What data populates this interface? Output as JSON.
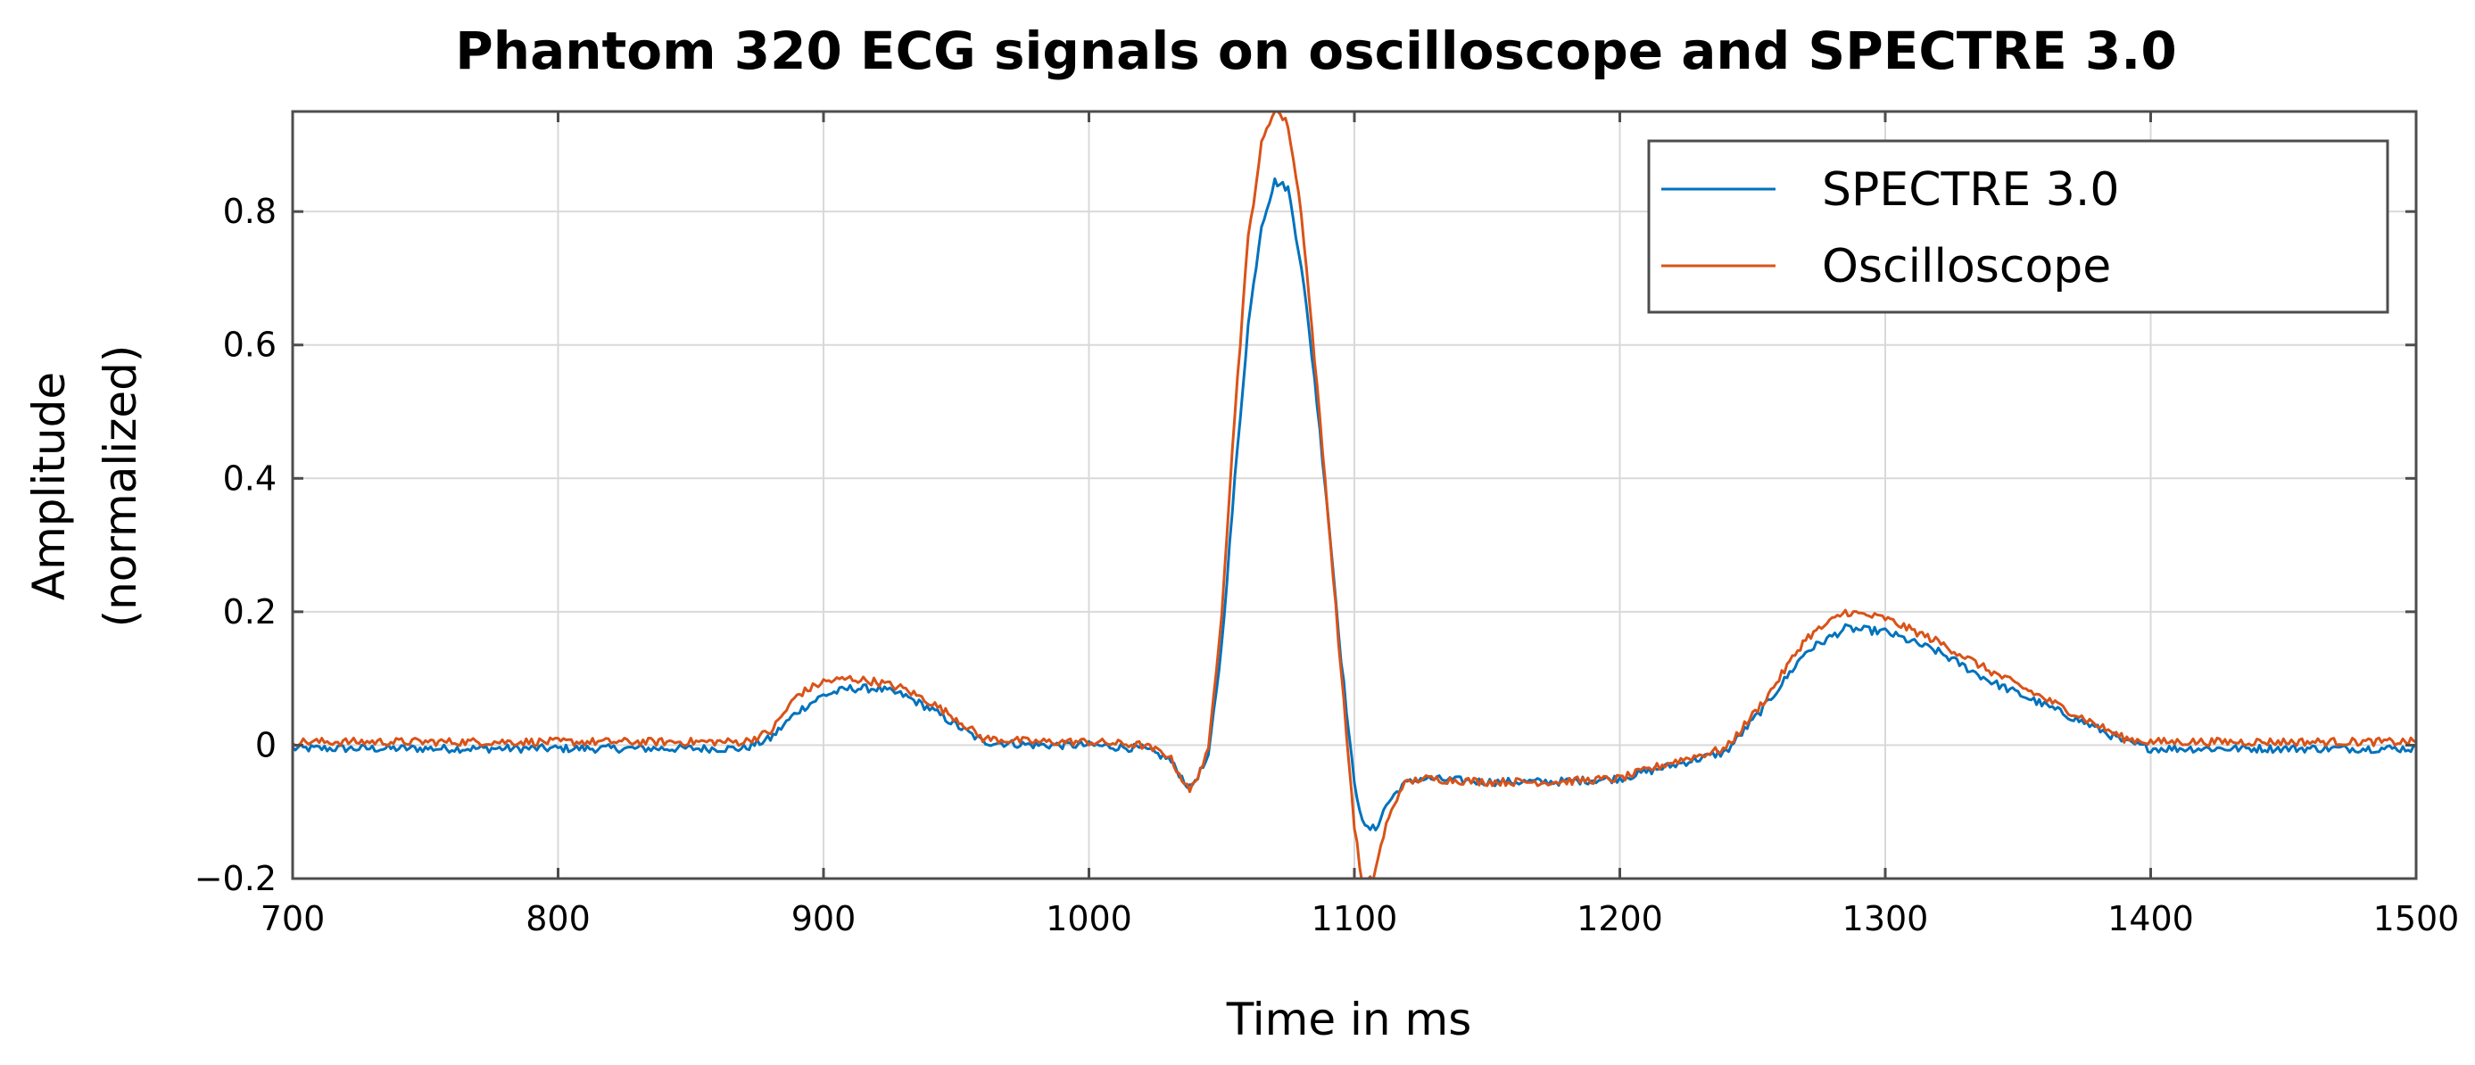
{
  "chart_data": {
    "type": "line",
    "title": "Phantom 320 ECG signals on oscilloscope and SPECTRE 3.0",
    "xlabel": "Time in ms",
    "ylabel_line1": "Amplitude",
    "ylabel_line2": "(normalized)",
    "xlim": [
      700,
      1500
    ],
    "ylim": [
      -0.2,
      0.95
    ],
    "xticks": [
      700,
      800,
      900,
      1000,
      1100,
      1200,
      1300,
      1400,
      1500
    ],
    "xtick_labels": [
      "700",
      "800",
      "900",
      "1000",
      "1100",
      "1200",
      "1300",
      "1400",
      "1500"
    ],
    "yticks": [
      -0.2,
      0,
      0.2,
      0.4,
      0.6,
      0.8
    ],
    "ytick_labels": [
      "−0.2",
      "0",
      "0.2",
      "0.4",
      "0.6",
      "0.8"
    ],
    "grid": true,
    "legend_position": "top-right",
    "series": [
      {
        "name": "SPECTRE 3.0",
        "color": "#0072BD",
        "x": [
          700,
          800,
          870,
          880,
          890,
          900,
          910,
          920,
          930,
          940,
          950,
          960,
          980,
          1000,
          1020,
          1030,
          1038,
          1045,
          1050,
          1055,
          1060,
          1065,
          1070,
          1075,
          1080,
          1085,
          1090,
          1095,
          1100,
          1104,
          1108,
          1112,
          1118,
          1125,
          1150,
          1175,
          1200,
          1220,
          1240,
          1255,
          1270,
          1285,
          1300,
          1320,
          1340,
          1360,
          1380,
          1390,
          1400,
          1450,
          1500
        ],
        "y": [
          -0.005,
          -0.005,
          -0.005,
          0.01,
          0.05,
          0.075,
          0.085,
          0.085,
          0.075,
          0.055,
          0.03,
          0.005,
          0.0,
          0.0,
          -0.005,
          -0.02,
          -0.065,
          -0.02,
          0.15,
          0.4,
          0.63,
          0.78,
          0.845,
          0.835,
          0.72,
          0.55,
          0.35,
          0.13,
          -0.06,
          -0.125,
          -0.125,
          -0.09,
          -0.06,
          -0.05,
          -0.055,
          -0.055,
          -0.05,
          -0.03,
          -0.01,
          0.06,
          0.14,
          0.175,
          0.17,
          0.14,
          0.095,
          0.06,
          0.025,
          0.005,
          -0.005,
          -0.005,
          -0.005
        ]
      },
      {
        "name": "Oscilloscope",
        "color": "#D95319",
        "x": [
          700,
          800,
          870,
          880,
          890,
          900,
          910,
          920,
          930,
          940,
          950,
          960,
          980,
          1000,
          1020,
          1030,
          1038,
          1045,
          1050,
          1055,
          1060,
          1065,
          1070,
          1075,
          1080,
          1085,
          1090,
          1095,
          1100,
          1103,
          1107,
          1112,
          1118,
          1125,
          1150,
          1175,
          1200,
          1220,
          1240,
          1255,
          1270,
          1285,
          1300,
          1320,
          1340,
          1360,
          1380,
          1390,
          1400,
          1450,
          1500
        ],
        "y": [
          0.005,
          0.005,
          0.005,
          0.02,
          0.075,
          0.095,
          0.1,
          0.095,
          0.085,
          0.065,
          0.04,
          0.01,
          0.005,
          0.005,
          0.0,
          -0.015,
          -0.07,
          -0.01,
          0.2,
          0.5,
          0.76,
          0.9,
          0.955,
          0.93,
          0.8,
          0.58,
          0.35,
          0.11,
          -0.12,
          -0.21,
          -0.2,
          -0.12,
          -0.06,
          -0.05,
          -0.055,
          -0.055,
          -0.05,
          -0.025,
          -0.005,
          0.07,
          0.16,
          0.2,
          0.19,
          0.155,
          0.11,
          0.07,
          0.03,
          0.01,
          0.005,
          0.005,
          0.005
        ]
      }
    ]
  }
}
